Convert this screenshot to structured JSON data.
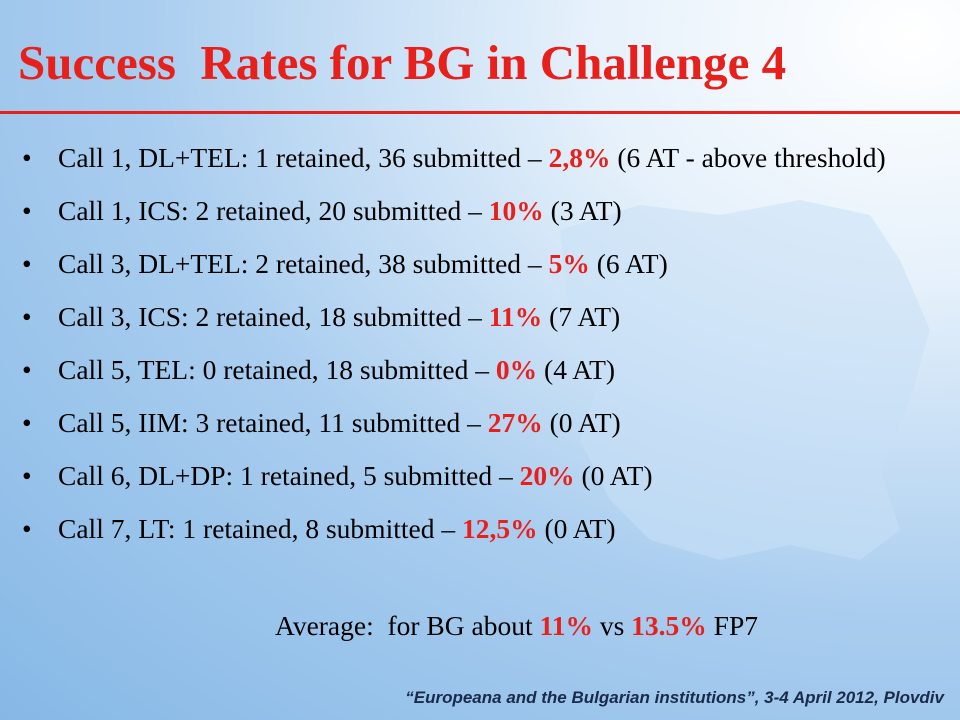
{
  "title": "Success  Rates for BG in Challenge 4",
  "bullets": [
    {
      "pre": "Call 1, DL+TEL: 1 retained, 36 submitted – ",
      "rate": "2,8%",
      "post": " (6 AT - above threshold)"
    },
    {
      "pre": "Call 1, ICS: 2 retained, 20 submitted – ",
      "rate": "10%",
      "post": " (3 AT)"
    },
    {
      "pre": "Call 3, DL+TEL: 2 retained, 38 submitted – ",
      "rate": "5%",
      "post": " (6 AT)"
    },
    {
      "pre": "Call 3, ICS: 2 retained, 18 submitted – ",
      "rate": "11%",
      "post": " (7 AT)"
    },
    {
      "pre": "Call 5, TEL: 0 retained, 18 submitted – ",
      "rate": "0%",
      "post": " (4 AT)"
    },
    {
      "pre": "Call 5, IIM: 3 retained, 11 submitted – ",
      "rate": "27%",
      "post": " (0 AT)"
    },
    {
      "pre": "Call 6, DL+DP: 1 retained, 5 submitted – ",
      "rate": "20%",
      "post": " (0 AT)"
    },
    {
      "pre": "Call 7, LT: 1 retained, 8 submitted – ",
      "rate": "12,5%",
      "post": " (0 AT)"
    }
  ],
  "average": {
    "pre": "Average:  for BG about ",
    "bg": "11%",
    "mid": " vs ",
    "fp7": "13.5%",
    "post": " FP7"
  },
  "footer": "“Europeana and the Bulgarian institutions”, 3-4 April 2012, Plovdiv"
}
